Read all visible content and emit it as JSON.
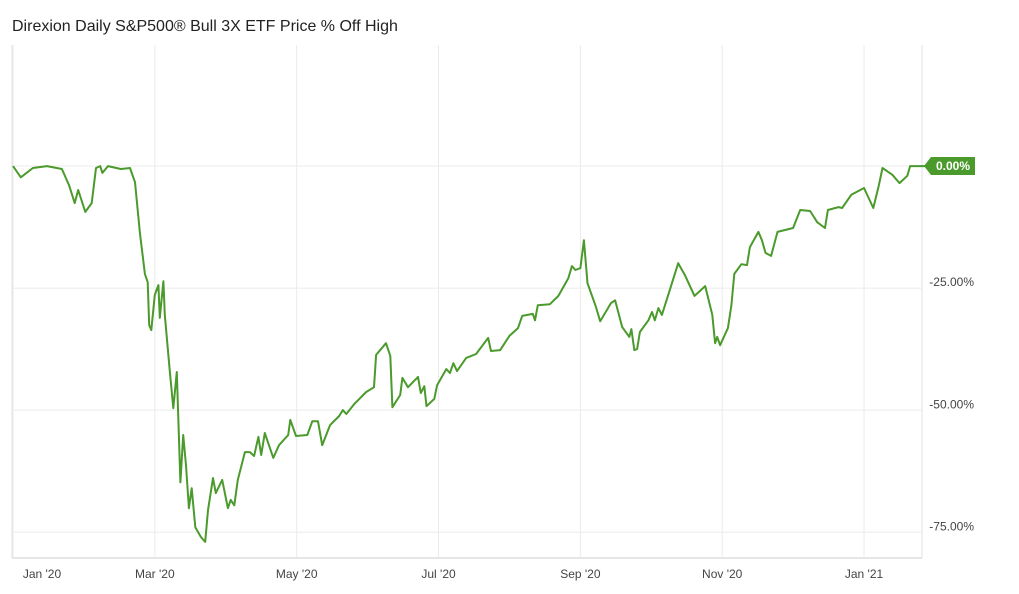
{
  "chart_data": {
    "type": "line",
    "title": "Direxion Daily S&P500® Bull 3X ETF Price % Off High",
    "x": [
      0,
      0.11,
      0.28,
      0.48,
      0.69,
      0.79,
      0.87,
      0.92,
      1.02,
      1.11,
      1.17,
      1.23,
      1.26,
      1.34,
      1.52,
      1.65,
      1.72,
      1.79,
      1.86,
      1.9,
      1.92,
      1.95,
      2,
      2.05,
      2.07,
      2.12,
      2.14,
      2.21,
      2.26,
      2.31,
      2.36,
      2.4,
      2.44,
      2.48,
      2.52,
      2.57,
      2.65,
      2.71,
      2.75,
      2.82,
      2.86,
      2.95,
      3.03,
      3.07,
      3.12,
      3.17,
      3.27,
      3.34,
      3.4,
      3.46,
      3.5,
      3.55,
      3.67,
      3.75,
      3.88,
      3.91,
      3.99,
      4.15,
      4.22,
      4.3,
      4.36,
      4.47,
      4.6,
      4.65,
      4.7,
      4.81,
      4.98,
      5.09,
      5.12,
      5.26,
      5.32,
      5.35,
      5.46,
      5.49,
      5.57,
      5.71,
      5.75,
      5.8,
      5.83,
      5.94,
      5.98,
      6.11,
      6.16,
      6.21,
      6.26,
      6.39,
      6.53,
      6.7,
      6.74,
      6.87,
      7,
      7.12,
      7.18,
      7.33,
      7.36,
      7.4,
      7.57,
      7.69,
      7.83,
      7.88,
      7.93,
      8,
      8.05,
      8.1,
      8.22,
      8.28,
      8.43,
      8.49,
      8.59,
      8.69,
      8.72,
      8.76,
      8.8,
      8.84,
      8.96,
      9.01,
      9.05,
      9.1,
      9.15,
      9.27,
      9.38,
      9.48,
      9.61,
      9.76,
      9.86,
      9.9,
      9.93,
      9.97,
      10.08,
      10.13,
      10.17,
      10.27,
      10.35,
      10.39,
      10.51,
      10.56,
      10.61,
      10.69,
      10.78,
      11,
      11.1,
      11.24,
      11.34,
      11.45,
      11.49,
      11.64,
      11.69,
      11.82,
      12,
      12.13,
      12.21,
      12.26,
      12.4,
      12.5,
      12.61,
      12.65,
      12.76,
      12.93
    ],
    "series": [
      {
        "name": "Price % Off High",
        "color": "#4a9a2c",
        "values": [
          0,
          -2.3,
          -0.4,
          0,
          -0.6,
          -3.9,
          -7.6,
          -4.9,
          -9.4,
          -7.6,
          -0.4,
          0,
          -1.4,
          0,
          -0.6,
          -0.4,
          -3.3,
          -13.7,
          -22.1,
          -23.8,
          -32.6,
          -33.6,
          -26.4,
          -24.4,
          -31.1,
          -23.6,
          -30.5,
          -41.8,
          -49.6,
          -42.2,
          -64.8,
          -55.1,
          -61.3,
          -70.1,
          -66,
          -74,
          -76,
          -77,
          -70.5,
          -63.9,
          -67,
          -64.3,
          -70.1,
          -68.4,
          -69.5,
          -64.3,
          -58.6,
          -58.6,
          -59.4,
          -55.5,
          -59.2,
          -54.7,
          -59.8,
          -57.2,
          -55.1,
          -52,
          -55.3,
          -55.1,
          -52.3,
          -52.3,
          -57.2,
          -53.1,
          -51.2,
          -50,
          -50.8,
          -48.8,
          -46.3,
          -45.3,
          -38.7,
          -36.3,
          -38.9,
          -49.4,
          -46.9,
          -43.4,
          -45.3,
          -43.2,
          -46.5,
          -45.1,
          -49.2,
          -47.7,
          -44.9,
          -41.6,
          -42.4,
          -40.4,
          -42,
          -39.3,
          -38.5,
          -35.2,
          -37.9,
          -37.7,
          -34.8,
          -33.2,
          -30.7,
          -30.3,
          -31.6,
          -28.5,
          -28.3,
          -26.6,
          -23,
          -20.5,
          -21.3,
          -20.9,
          -15.2,
          -24,
          -28.9,
          -31.8,
          -28.1,
          -27.5,
          -33,
          -35,
          -33.4,
          -37.7,
          -37.5,
          -34,
          -31.6,
          -29.9,
          -31.6,
          -29.1,
          -30.5,
          -25,
          -19.9,
          -22.5,
          -26.6,
          -24.6,
          -30.5,
          -36.3,
          -35,
          -36.7,
          -33.2,
          -28.5,
          -22.1,
          -20.1,
          -20.3,
          -16.6,
          -13.5,
          -15.2,
          -17.8,
          -18.4,
          -13.5,
          -12.7,
          -9,
          -9.2,
          -11.5,
          -12.7,
          -9,
          -8.4,
          -8.6,
          -5.9,
          -4.5,
          -8.6,
          -3.9,
          -0.4,
          -1.8,
          -3.5,
          -2,
          0,
          0,
          0
        ]
      }
    ],
    "xlim": [
      0,
      12.93
    ],
    "xticks": [
      {
        "value": 0,
        "label": "Jan '20"
      },
      {
        "value": 2,
        "label": "Mar '20"
      },
      {
        "value": 4,
        "label": "May '20"
      },
      {
        "value": 6,
        "label": "Jul '20"
      },
      {
        "value": 8,
        "label": "Sep '20"
      },
      {
        "value": 10,
        "label": "Nov '20"
      },
      {
        "value": 12,
        "label": "Jan '21"
      }
    ],
    "ylim": [
      -80.3,
      24.8
    ],
    "yticks": [
      {
        "value": 0,
        "label": "0.00%"
      },
      {
        "value": -25,
        "label": "-25.00%"
      },
      {
        "value": -50,
        "label": "-50.00%"
      },
      {
        "value": -75,
        "label": "-75.00%"
      }
    ],
    "grid": true
  }
}
